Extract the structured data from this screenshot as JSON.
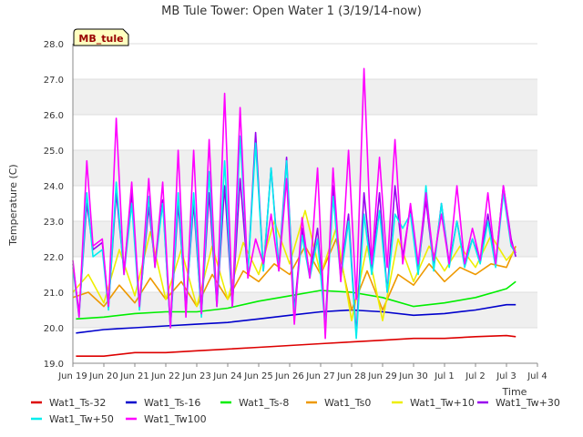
{
  "chart_data": {
    "type": "line",
    "title": "MB Tule Tower: Open Water 1 (3/19/14-now)",
    "xlabel": "Time",
    "ylabel": "Temperature (C)",
    "site_label": "MB_tule",
    "ylim": [
      19.0,
      28.0
    ],
    "yticks": [
      "19.0",
      "20.0",
      "21.0",
      "22.0",
      "23.0",
      "24.0",
      "25.0",
      "26.0",
      "27.0",
      "28.0"
    ],
    "xlim": [
      0,
      15
    ],
    "xticks": [
      "Jun 19",
      "Jun 20",
      "Jun 21",
      "Jun 22",
      "Jun 23",
      "Jun 24",
      "Jun 25",
      "Jun 26",
      "Jun 27",
      "Jun 28",
      "Jun 29",
      "Jun 30",
      "Jul 1",
      "Jul 2",
      "Jul 3",
      "Jul 4"
    ],
    "x_unit": "days since Jun 19 00:00",
    "grid": true,
    "legend_position": "bottom",
    "series": [
      {
        "name": "Wat1_Ts-32",
        "color": "#dd0000",
        "x": [
          0.1,
          1,
          2,
          3,
          4,
          5,
          6,
          7,
          8,
          9,
          10,
          11,
          12,
          13,
          14,
          14.3
        ],
        "y": [
          19.2,
          19.2,
          19.3,
          19.3,
          19.35,
          19.4,
          19.45,
          19.5,
          19.55,
          19.6,
          19.65,
          19.7,
          19.7,
          19.75,
          19.78,
          19.75
        ]
      },
      {
        "name": "Wat1_Ts-16",
        "color": "#0000cc",
        "x": [
          0.1,
          1,
          2,
          3,
          4,
          5,
          6,
          7,
          8,
          9,
          10,
          11,
          12,
          13,
          14,
          14.3
        ],
        "y": [
          19.85,
          19.95,
          20.0,
          20.05,
          20.1,
          20.15,
          20.25,
          20.35,
          20.45,
          20.5,
          20.45,
          20.35,
          20.4,
          20.5,
          20.65,
          20.65
        ]
      },
      {
        "name": "Wat1_Ts-8",
        "color": "#00ee00",
        "x": [
          0.1,
          1,
          2,
          3,
          4,
          5,
          6,
          7,
          8,
          9,
          10,
          11,
          12,
          13,
          14,
          14.3
        ],
        "y": [
          20.25,
          20.3,
          20.4,
          20.45,
          20.45,
          20.55,
          20.75,
          20.9,
          21.05,
          21.0,
          20.85,
          20.6,
          20.7,
          20.85,
          21.1,
          21.3
        ]
      },
      {
        "name": "Wat1_Ts0",
        "color": "#ee9900",
        "x": [
          0,
          0.5,
          1,
          1.5,
          2,
          2.5,
          3,
          3.5,
          4,
          4.5,
          5,
          5.5,
          6,
          6.5,
          7,
          7.5,
          8,
          8.5,
          9,
          9.5,
          10,
          10.5,
          11,
          11.5,
          12,
          12.5,
          13,
          13.5,
          14,
          14.3
        ],
        "y": [
          20.85,
          21.0,
          20.6,
          21.2,
          20.7,
          21.4,
          20.8,
          21.3,
          20.6,
          21.5,
          20.8,
          21.6,
          21.3,
          21.8,
          21.5,
          22.3,
          21.5,
          22.5,
          20.5,
          21.6,
          20.5,
          21.5,
          21.2,
          21.8,
          21.3,
          21.7,
          21.5,
          21.8,
          21.7,
          22.3
        ]
      },
      {
        "name": "Wat1_Tw+10",
        "color": "#eeee00",
        "x": [
          0,
          0.5,
          1,
          1.5,
          2,
          2.5,
          3,
          3.5,
          4,
          4.5,
          5,
          5.5,
          6,
          6.5,
          7,
          7.5,
          8,
          8.5,
          9,
          9.5,
          10,
          10.5,
          11,
          11.5,
          12,
          12.5,
          13,
          13.5,
          14,
          14.3
        ],
        "y": [
          21.0,
          21.5,
          20.7,
          22.2,
          20.9,
          22.7,
          20.8,
          22.2,
          20.6,
          22.3,
          20.8,
          22.4,
          21.5,
          23.0,
          21.8,
          23.3,
          21.5,
          22.8,
          20.2,
          22.3,
          20.2,
          22.5,
          21.3,
          22.3,
          21.6,
          22.3,
          21.7,
          22.6,
          21.9,
          22.2
        ]
      },
      {
        "name": "Wat1_Tw+30",
        "color": "#9900ee",
        "x": [
          0,
          0.2,
          0.45,
          0.65,
          0.95,
          1.15,
          1.4,
          1.65,
          1.9,
          2.15,
          2.45,
          2.65,
          2.9,
          3.15,
          3.4,
          3.65,
          3.9,
          4.15,
          4.4,
          4.65,
          4.9,
          5.15,
          5.4,
          5.65,
          5.9,
          6.15,
          6.4,
          6.65,
          6.9,
          7.15,
          7.4,
          7.65,
          7.9,
          8.15,
          8.4,
          8.65,
          8.9,
          9.15,
          9.4,
          9.65,
          9.9,
          10.15,
          10.4,
          10.65,
          10.9,
          11.15,
          11.4,
          11.65,
          11.9,
          12.15,
          12.4,
          12.65,
          12.9,
          13.15,
          13.4,
          13.65,
          13.9,
          14.15,
          14.3
        ],
        "y": [
          21.8,
          20.4,
          23.5,
          22.2,
          22.4,
          20.6,
          23.8,
          21.6,
          23.8,
          20.6,
          23.4,
          21.8,
          23.6,
          20.0,
          23.5,
          20.6,
          23.5,
          20.4,
          23.8,
          20.6,
          24.0,
          20.6,
          24.2,
          21.5,
          25.5,
          21.6,
          24.5,
          21.7,
          24.8,
          20.5,
          22.8,
          21.5,
          22.8,
          20.1,
          24.0,
          21.5,
          23.2,
          19.8,
          23.8,
          21.6,
          23.8,
          21.0,
          24.0,
          22.0,
          23.4,
          21.6,
          23.6,
          21.7,
          23.5,
          21.8,
          23.0,
          21.8,
          22.5,
          21.9,
          23.2,
          21.8,
          24.0,
          22.5,
          22.0
        ]
      },
      {
        "name": "Wat1_Tw+50",
        "color": "#00eeee",
        "x": [
          0,
          0.2,
          0.45,
          0.65,
          0.95,
          1.15,
          1.4,
          1.65,
          1.9,
          2.15,
          2.45,
          2.65,
          2.9,
          3.15,
          3.4,
          3.65,
          3.9,
          4.15,
          4.4,
          4.65,
          4.9,
          5.15,
          5.4,
          5.65,
          5.9,
          6.15,
          6.4,
          6.65,
          6.9,
          7.15,
          7.4,
          7.65,
          7.9,
          8.15,
          8.4,
          8.65,
          8.9,
          9.15,
          9.4,
          9.65,
          9.9,
          10.15,
          10.4,
          10.65,
          10.9,
          11.15,
          11.4,
          11.65,
          11.9,
          12.15,
          12.4,
          12.65,
          12.9,
          13.15,
          13.4,
          13.65,
          13.9,
          14.15,
          14.3
        ],
        "y": [
          21.7,
          20.3,
          23.8,
          22.0,
          22.2,
          20.5,
          24.1,
          21.5,
          23.5,
          20.5,
          23.7,
          21.7,
          23.5,
          20.0,
          23.8,
          20.4,
          23.8,
          20.3,
          24.4,
          20.6,
          24.7,
          20.6,
          25.4,
          21.5,
          25.2,
          21.6,
          24.5,
          21.6,
          24.7,
          20.4,
          22.6,
          21.4,
          22.5,
          20.0,
          23.7,
          21.4,
          23.0,
          19.7,
          23.2,
          21.5,
          23.3,
          21.0,
          23.2,
          22.8,
          23.2,
          21.5,
          24.0,
          21.6,
          23.5,
          21.7,
          23.0,
          21.7,
          22.5,
          21.8,
          23.0,
          21.7,
          23.8,
          22.3,
          22.1
        ]
      },
      {
        "name": "Wat1_Tw100",
        "color": "#ff00ff",
        "x": [
          0,
          0.2,
          0.45,
          0.65,
          0.95,
          1.15,
          1.4,
          1.65,
          1.9,
          2.15,
          2.45,
          2.65,
          2.9,
          3.15,
          3.4,
          3.65,
          3.9,
          4.15,
          4.4,
          4.65,
          4.9,
          5.15,
          5.4,
          5.65,
          5.9,
          6.15,
          6.4,
          6.65,
          6.9,
          7.15,
          7.4,
          7.65,
          7.9,
          8.15,
          8.4,
          8.65,
          8.9,
          9.15,
          9.4,
          9.65,
          9.9,
          10.15,
          10.4,
          10.65,
          10.9,
          11.15,
          11.4,
          11.65,
          11.9,
          12.15,
          12.4,
          12.65,
          12.9,
          13.15,
          13.4,
          13.65,
          13.9,
          14.15,
          14.3
        ],
        "y": [
          21.9,
          20.3,
          24.7,
          22.3,
          22.5,
          20.6,
          25.9,
          21.5,
          24.1,
          20.6,
          24.2,
          21.7,
          24.1,
          20.0,
          25.0,
          20.3,
          25.0,
          20.4,
          25.3,
          20.6,
          26.6,
          20.6,
          26.2,
          21.4,
          22.5,
          21.8,
          23.2,
          21.6,
          24.2,
          20.1,
          23.1,
          21.4,
          24.5,
          19.7,
          24.5,
          21.3,
          25.0,
          20.8,
          27.3,
          21.8,
          24.8,
          21.7,
          25.3,
          21.8,
          23.5,
          21.8,
          23.8,
          21.9,
          23.2,
          21.8,
          24.0,
          21.8,
          22.8,
          21.9,
          23.8,
          21.8,
          24.0,
          22.4,
          22.1
        ]
      }
    ]
  }
}
